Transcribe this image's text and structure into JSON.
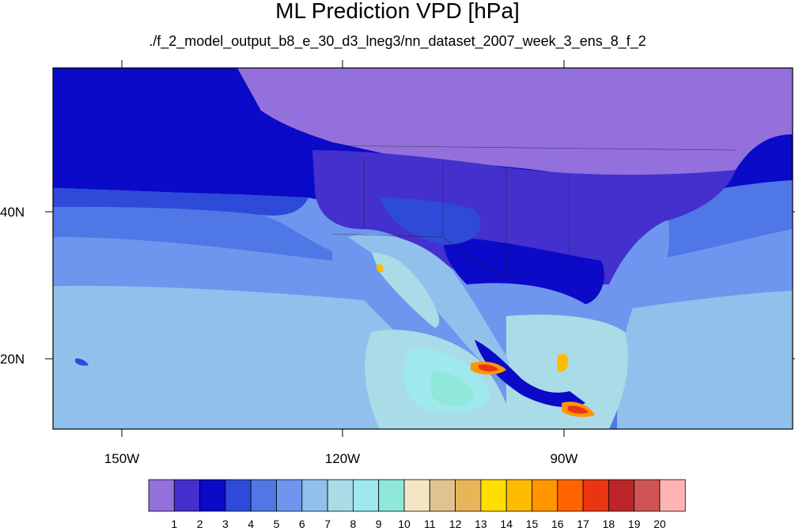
{
  "title": "ML Prediction VPD [hPa]",
  "subtitle": "./f_2_model_output_b8_e_30_d3_lneg3/nn_dataset_2007_week_3_ens_8_f_2",
  "axes": {
    "lon_labels": [
      "150W",
      "120W",
      "90W"
    ],
    "lat_labels": [
      "40N",
      "20N"
    ]
  },
  "colorbar": {
    "labels": [
      "1",
      "2",
      "3",
      "4",
      "5",
      "6",
      "7",
      "8",
      "9",
      "10",
      "11",
      "12",
      "13",
      "14",
      "15",
      "16",
      "17",
      "18",
      "19",
      "20"
    ],
    "colors": [
      "#9370db",
      "#4330cd",
      "#0a0ac8",
      "#2e4ad8",
      "#4f78e6",
      "#6f96ee",
      "#92c0ec",
      "#a9dce6",
      "#9fe8ee",
      "#8fe8d8",
      "#f3e5c4",
      "#e0c391",
      "#e7b659",
      "#ffde00",
      "#ffbb00",
      "#ff9600",
      "#ff6400",
      "#ea3512",
      "#bd2628",
      "#d05454",
      "#ffb4b4"
    ]
  },
  "colors": {
    "ocean_north": "#0a0ac8",
    "land_north": "#9370db",
    "land_mid": "#4330cd",
    "ocean_south": "#92c0ec"
  }
}
